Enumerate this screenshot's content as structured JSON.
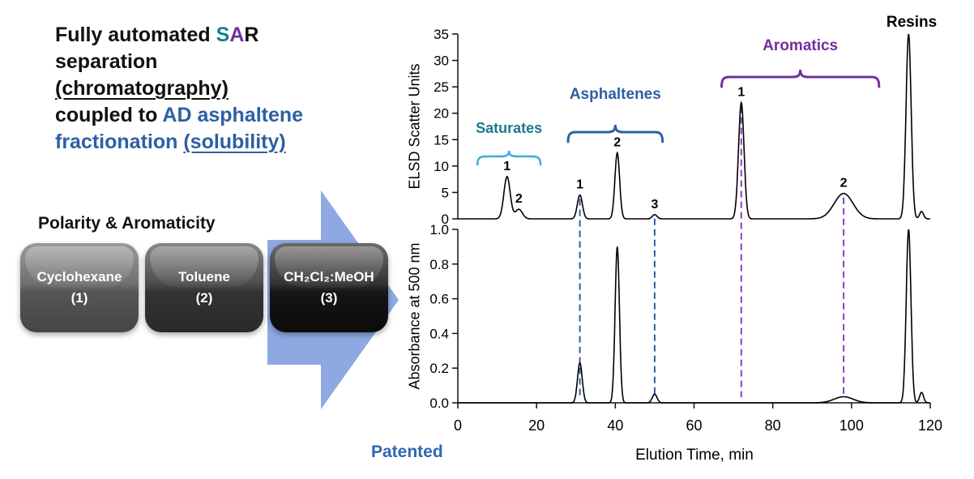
{
  "headline": {
    "part_fully": "Fully automated ",
    "part_s": "S",
    "part_a": "A",
    "part_r": "R",
    "line_separation": "separation",
    "line_chromatography": "(chromatography)",
    "part_coupled": "coupled to ",
    "part_ad": "AD asphaltene",
    "part_fractionation": "fractionation ",
    "part_solubility": "(solubility)"
  },
  "arrow_label": "Polarity & Aromaticity",
  "solvents": [
    {
      "name": "Cyclohexane",
      "number": "(1)"
    },
    {
      "name": "Toluene",
      "number": "(2)"
    },
    {
      "name": "CH₂Cl₂:MeOH",
      "number": "(3)"
    }
  ],
  "patented_label": "Patented",
  "colors": {
    "s_teal": "#18808c",
    "a_purple": "#7030a0",
    "headline_blue": "#2e5fa3",
    "arrow_blue": "#8ea9e2",
    "patented_blue": "#2d68b2",
    "peak_label_blue": "#1f4e79",
    "trace_black": "#000000"
  },
  "chart_data": {
    "type": "line",
    "title": "SAR chromatography coupled to asphaltene fractionation",
    "x_axis": {
      "label": "Elution Time, min",
      "min": 0,
      "max": 120,
      "ticks": [
        0,
        20,
        40,
        60,
        80,
        100,
        120
      ]
    },
    "panels": [
      {
        "ylabel": "ELSD Scatter Units",
        "ymin": 0,
        "ymax": 35,
        "yticks": [
          "0",
          "5",
          "10",
          "15",
          "20",
          "25",
          "30",
          "35"
        ],
        "peaks": [
          {
            "x": 12.5,
            "height": 8,
            "sigma": 0.8
          },
          {
            "x": 15.5,
            "height": 1.8,
            "sigma": 0.9
          },
          {
            "x": 31,
            "height": 4.5,
            "sigma": 0.65
          },
          {
            "x": 40.5,
            "height": 12.5,
            "sigma": 0.6
          },
          {
            "x": 50,
            "height": 0.8,
            "sigma": 0.6
          },
          {
            "x": 72,
            "height": 22,
            "sigma": 0.7
          },
          {
            "x": 98,
            "height": 4.8,
            "sigma": 2.4
          },
          {
            "x": 114.5,
            "height": 35,
            "sigma": 0.65
          },
          {
            "x": 117.8,
            "height": 1.4,
            "sigma": 0.5
          }
        ]
      },
      {
        "ylabel": "Absorbance at 500 nm",
        "ymin": 0,
        "ymax": 1.0,
        "yticks": [
          "0.0",
          "0.2",
          "0.4",
          "0.6",
          "0.8",
          "1.0"
        ],
        "peaks": [
          {
            "x": 31,
            "height": 0.23,
            "sigma": 0.6
          },
          {
            "x": 40.5,
            "height": 0.9,
            "sigma": 0.55
          },
          {
            "x": 50,
            "height": 0.05,
            "sigma": 0.6
          },
          {
            "x": 98,
            "height": 0.035,
            "sigma": 2.4
          },
          {
            "x": 114.5,
            "height": 1.0,
            "sigma": 0.6
          },
          {
            "x": 117.8,
            "height": 0.06,
            "sigma": 0.5
          }
        ]
      }
    ],
    "fractions": [
      {
        "name": "Saturates",
        "label_color": "#1b7a8c",
        "bracket_color": "#3fa9d9",
        "from_min": 5,
        "to_min": 21
      },
      {
        "name": "Asphaltenes",
        "label_color": "#2e5fa3",
        "bracket_color": "#2e5fa3",
        "from_min": 28,
        "to_min": 52
      },
      {
        "name": "Aromatics",
        "label_color": "#7030a0",
        "bracket_color": "#7030a0",
        "from_min": 67,
        "to_min": 107
      }
    ],
    "tie_lines": [
      {
        "x_min": 31,
        "color": "#2e5fa3"
      },
      {
        "x_min": 50,
        "color": "#2e5fa3"
      },
      {
        "x_min": 72,
        "color": "#8a3fbf"
      },
      {
        "x_min": 98,
        "color": "#8a3fbf"
      }
    ],
    "peak_labels": [
      {
        "text": "1",
        "x": 12.5,
        "panel": 0
      },
      {
        "text": "2",
        "x": 15.5,
        "panel": 0
      },
      {
        "text": "1",
        "x": 31,
        "panel": 0
      },
      {
        "text": "2",
        "x": 40.5,
        "panel": 0
      },
      {
        "text": "3",
        "x": 50,
        "panel": 0
      },
      {
        "text": "1",
        "x": 72,
        "panel": 0
      },
      {
        "text": "2",
        "x": 98,
        "panel": 0
      }
    ],
    "resins_label": "Resins"
  }
}
